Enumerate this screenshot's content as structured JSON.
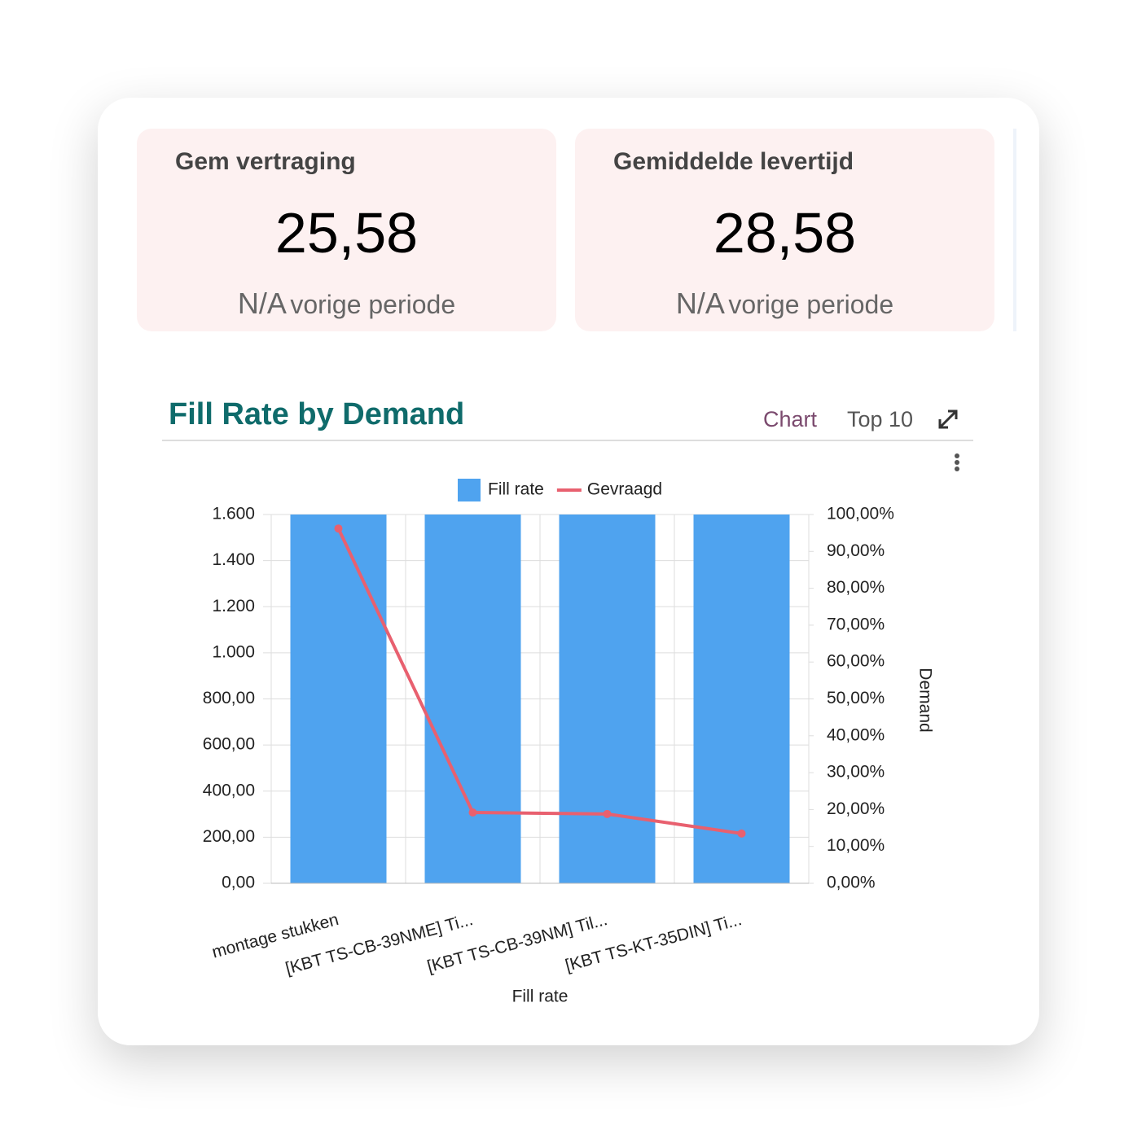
{
  "kpis": [
    {
      "title": "Gem vertraging",
      "value": "25,58",
      "comparison_value": "N/A",
      "comparison_label": "vorige periode"
    },
    {
      "title": "Gemiddelde levertijd",
      "value": "28,58",
      "comparison_value": "N/A",
      "comparison_label": "vorige periode"
    }
  ],
  "chart_header": {
    "title": "Fill Rate by Demand",
    "view": "Chart",
    "limit": "Top 10"
  },
  "chart_data": {
    "type": "bar",
    "categories": [
      "montage stukken",
      "[KBT TS-CB-39NME] Ti...",
      "[KBT TS-CB-39NM] Til...",
      "[KBT TS-KT-35DIN] Ti..."
    ],
    "series": [
      {
        "name": "Fill rate",
        "color": "#4fa3ef",
        "type": "bar",
        "values": [
          1600,
          1600,
          1600,
          1600
        ]
      },
      {
        "name": "Gevraagd",
        "color": "#e8606f",
        "type": "line",
        "axis": "y2",
        "values": [
          96.2,
          19.2,
          18.8,
          13.5
        ]
      }
    ],
    "x_label": "Fill rate",
    "y2_label": "Demand",
    "ylim": [
      0,
      1600
    ],
    "yticks": [
      {
        "value": 0,
        "label": "0,00"
      },
      {
        "value": 200,
        "label": "200,00"
      },
      {
        "value": 400,
        "label": "400,00"
      },
      {
        "value": 600,
        "label": "600,00"
      },
      {
        "value": 800,
        "label": "800,00"
      },
      {
        "value": 1000,
        "label": "1.000"
      },
      {
        "value": 1200,
        "label": "1.200"
      },
      {
        "value": 1400,
        "label": "1.400"
      },
      {
        "value": 1600,
        "label": "1.600"
      }
    ],
    "y2lim": [
      0,
      100
    ],
    "y2ticks": [
      {
        "value": 0,
        "label": "0,00%"
      },
      {
        "value": 10,
        "label": "10,00%"
      },
      {
        "value": 20,
        "label": "20,00%"
      },
      {
        "value": 30,
        "label": "30,00%"
      },
      {
        "value": 40,
        "label": "40,00%"
      },
      {
        "value": 50,
        "label": "50,00%"
      },
      {
        "value": 60,
        "label": "60,00%"
      },
      {
        "value": 70,
        "label": "70,00%"
      },
      {
        "value": 80,
        "label": "80,00%"
      },
      {
        "value": 90,
        "label": "90,00%"
      },
      {
        "value": 100,
        "label": "100,00%"
      }
    ],
    "grid": true,
    "legend": "top"
  }
}
